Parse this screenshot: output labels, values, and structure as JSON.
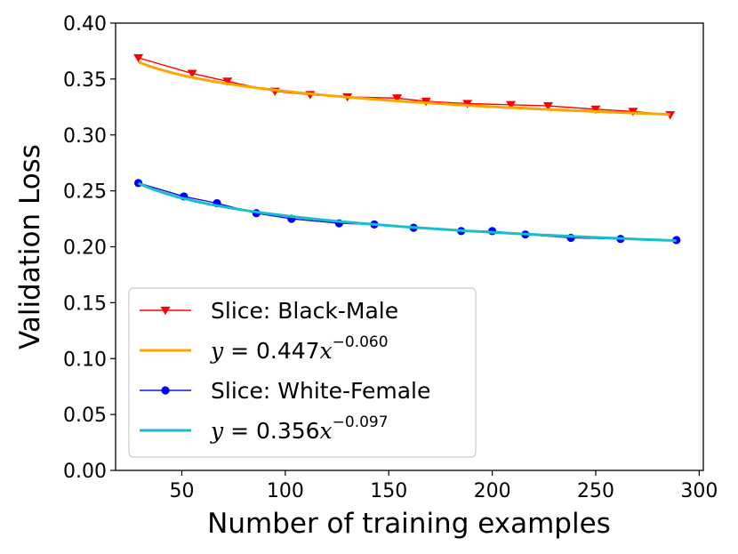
{
  "chart_data": {
    "type": "line",
    "title": "",
    "xlabel": "Number of training examples",
    "ylabel": "Validation Loss",
    "xlim": [
      18,
      302
    ],
    "ylim": [
      0.0,
      0.4
    ],
    "xticks": [
      50,
      100,
      150,
      200,
      250,
      300
    ],
    "xtick_labels": [
      "50",
      "100",
      "150",
      "200",
      "250",
      "300"
    ],
    "yticks": [
      0.0,
      0.05,
      0.1,
      0.15,
      0.2,
      0.25,
      0.3,
      0.35,
      0.4
    ],
    "ytick_labels": [
      "0.00",
      "0.05",
      "0.10",
      "0.15",
      "0.20",
      "0.25",
      "0.30",
      "0.35",
      "0.40"
    ],
    "grid": false,
    "legend_position": "lower-left",
    "series": [
      {
        "name": "Slice: Black-Male",
        "kind": "data",
        "marker": "triangle-down",
        "color": "#ff0000",
        "marker_color": "#ff0000",
        "x": [
          29,
          55,
          72,
          95,
          112,
          130,
          154,
          168,
          188,
          209,
          227,
          250,
          268,
          286
        ],
        "y": [
          0.369,
          0.355,
          0.348,
          0.339,
          0.336,
          0.334,
          0.333,
          0.33,
          0.328,
          0.327,
          0.326,
          0.323,
          0.321,
          0.318
        ]
      },
      {
        "name": "y = 0.447x^-0.060",
        "label_prefix": "y",
        "label_eq": " = 0.447",
        "label_x": "x",
        "label_exp": "−0.060",
        "kind": "fit",
        "color": "#ffa500",
        "a": 0.447,
        "b": -0.06,
        "x_range": [
          29,
          286
        ]
      },
      {
        "name": "Slice: White-Female",
        "kind": "data",
        "marker": "circle",
        "color": "#1010ee",
        "marker_color": "#0000ff",
        "x": [
          29,
          51,
          67,
          86,
          103,
          126,
          143,
          162,
          185,
          200,
          216,
          238,
          262,
          289
        ],
        "y": [
          0.257,
          0.245,
          0.239,
          0.23,
          0.225,
          0.221,
          0.22,
          0.217,
          0.214,
          0.214,
          0.211,
          0.208,
          0.207,
          0.206
        ]
      },
      {
        "name": "y = 0.356x^-0.097",
        "label_prefix": "y",
        "label_eq": " = 0.356",
        "label_x": "x",
        "label_exp": "−0.097",
        "kind": "fit",
        "color": "#17becf",
        "a": 0.356,
        "b": -0.097,
        "x_range": [
          29,
          289
        ]
      }
    ]
  }
}
